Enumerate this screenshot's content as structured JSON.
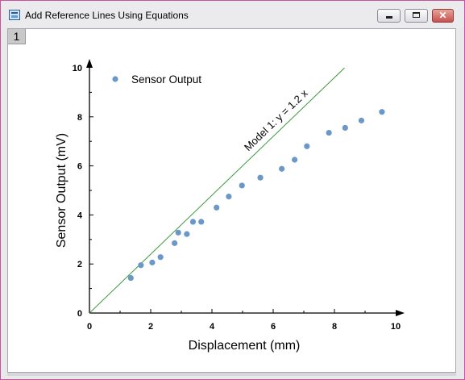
{
  "window": {
    "title": "Add Reference Lines Using Equations",
    "layer_tab": "1",
    "close_glyph": "✕",
    "accent_border": "#c8529e"
  },
  "chart_data": {
    "type": "scatter",
    "title": "",
    "xlabel": "Displacement (mm)",
    "ylabel": "Sensor Output (mV)",
    "xlim": [
      0,
      10
    ],
    "ylim": [
      0,
      10
    ],
    "x_ticks": [
      0,
      2,
      4,
      6,
      8,
      10
    ],
    "y_ticks": [
      0,
      2,
      4,
      6,
      8,
      10
    ],
    "x_tick_labels": [
      "0",
      "2",
      "4",
      "6",
      "8",
      "10"
    ],
    "y_tick_labels": [
      "0",
      "2",
      "4",
      "6",
      "8",
      "10"
    ],
    "grid": false,
    "legend": {
      "position": "top-left",
      "entries": [
        "Sensor Output"
      ]
    },
    "series": [
      {
        "name": "Sensor Output",
        "color": "#6a98c8",
        "points": [
          [
            1.35,
            1.43
          ],
          [
            1.68,
            1.95
          ],
          [
            2.05,
            2.06
          ],
          [
            2.32,
            2.28
          ],
          [
            2.78,
            2.85
          ],
          [
            2.9,
            3.28
          ],
          [
            3.18,
            3.22
          ],
          [
            3.38,
            3.72
          ],
          [
            3.65,
            3.72
          ],
          [
            4.15,
            4.3
          ],
          [
            4.55,
            4.75
          ],
          [
            4.98,
            5.2
          ],
          [
            5.58,
            5.52
          ],
          [
            6.28,
            5.88
          ],
          [
            6.7,
            6.25
          ],
          [
            7.1,
            6.8
          ],
          [
            7.82,
            7.35
          ],
          [
            8.35,
            7.55
          ],
          [
            8.88,
            7.85
          ],
          [
            9.55,
            8.2
          ]
        ]
      }
    ],
    "reference_line": {
      "label": "Model 1: y = 1.2 x",
      "slope": 1.2,
      "x_range": [
        0,
        8.33
      ],
      "color": "#3a9a3a"
    }
  }
}
